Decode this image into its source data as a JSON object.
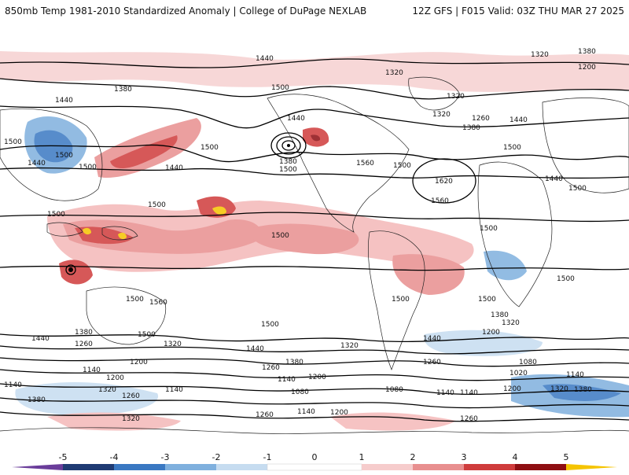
{
  "header": {
    "left_title": "850mb Temp 1981-2010 Standardized Anomaly | College of DuPage NEXLAB",
    "right_title": "12Z GFS | F015 Valid: 03Z THU MAR 27 2025"
  },
  "colorbar": {
    "ticks": [
      "-5",
      "-4",
      "-3",
      "-2",
      "-1",
      "0",
      "1",
      "2",
      "3",
      "4",
      "5"
    ],
    "colors": [
      "#6a3d9a",
      "#1f3b73",
      "#3a78c2",
      "#7fb0de",
      "#c6dcf0",
      "#ffffff",
      "#f6cccc",
      "#e88f8f",
      "#cf3c3c",
      "#8e0e12",
      "#f5c400"
    ]
  },
  "map": {
    "contour_labels": [
      "1440",
      "1380",
      "1320",
      "1260",
      "1200",
      "1140",
      "1080",
      "1020",
      "1500",
      "1560",
      "1620"
    ],
    "colors": {
      "land_outline": "#222222",
      "contour": "#000000",
      "warm_anom": "#e58a8a",
      "cold_anom": "#8cb7e3"
    }
  }
}
